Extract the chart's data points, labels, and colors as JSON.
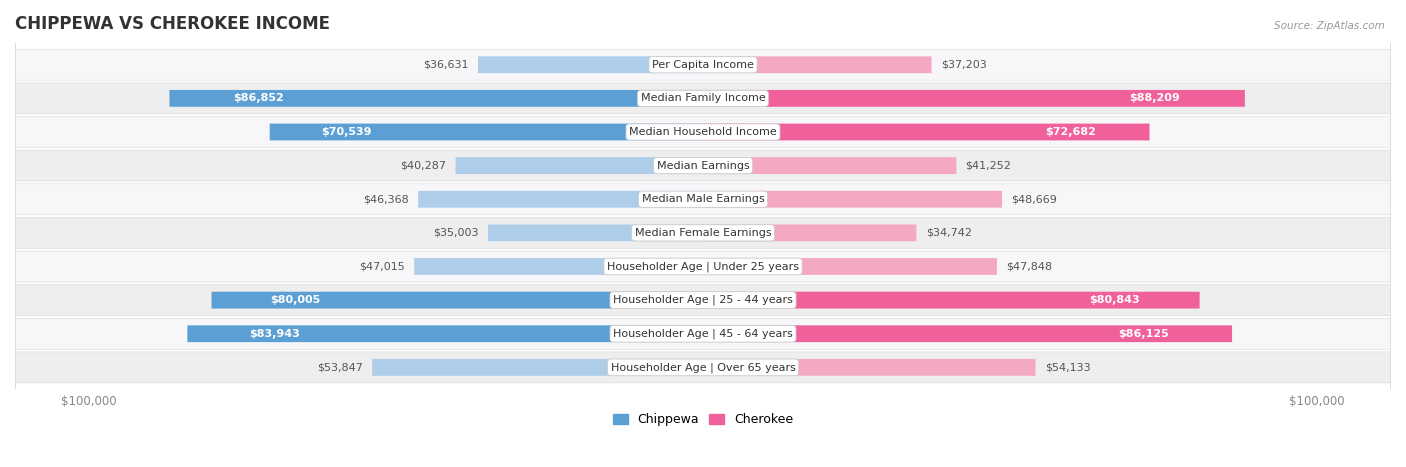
{
  "title": "CHIPPEWA VS CHEROKEE INCOME",
  "source": "Source: ZipAtlas.com",
  "categories": [
    "Per Capita Income",
    "Median Family Income",
    "Median Household Income",
    "Median Earnings",
    "Median Male Earnings",
    "Median Female Earnings",
    "Householder Age | Under 25 years",
    "Householder Age | 25 - 44 years",
    "Householder Age | 45 - 64 years",
    "Householder Age | Over 65 years"
  ],
  "chippewa_values": [
    36631,
    86852,
    70539,
    40287,
    46368,
    35003,
    47015,
    80005,
    83943,
    53847
  ],
  "cherokee_values": [
    37203,
    88209,
    72682,
    41252,
    48669,
    34742,
    47848,
    80843,
    86125,
    54133
  ],
  "chippewa_labels": [
    "$36,631",
    "$86,852",
    "$70,539",
    "$40,287",
    "$46,368",
    "$35,003",
    "$47,015",
    "$80,005",
    "$83,943",
    "$53,847"
  ],
  "cherokee_labels": [
    "$37,203",
    "$88,209",
    "$72,682",
    "$41,252",
    "$48,669",
    "$34,742",
    "$47,848",
    "$80,843",
    "$86,125",
    "$54,133"
  ],
  "max_value": 100000,
  "chippewa_color_light": "#aecde8",
  "chippewa_color_strong": "#5b9fd4",
  "cherokee_color_light": "#f4a8c4",
  "cherokee_color_strong": "#f0609a",
  "title_color": "#333333",
  "label_fontsize": 8.0,
  "title_fontsize": 12,
  "axis_label_color": "#888888",
  "strong_threshold": 65000,
  "row_bg_light": "#f7f7fa",
  "row_bg_dark": "#eeeeef"
}
